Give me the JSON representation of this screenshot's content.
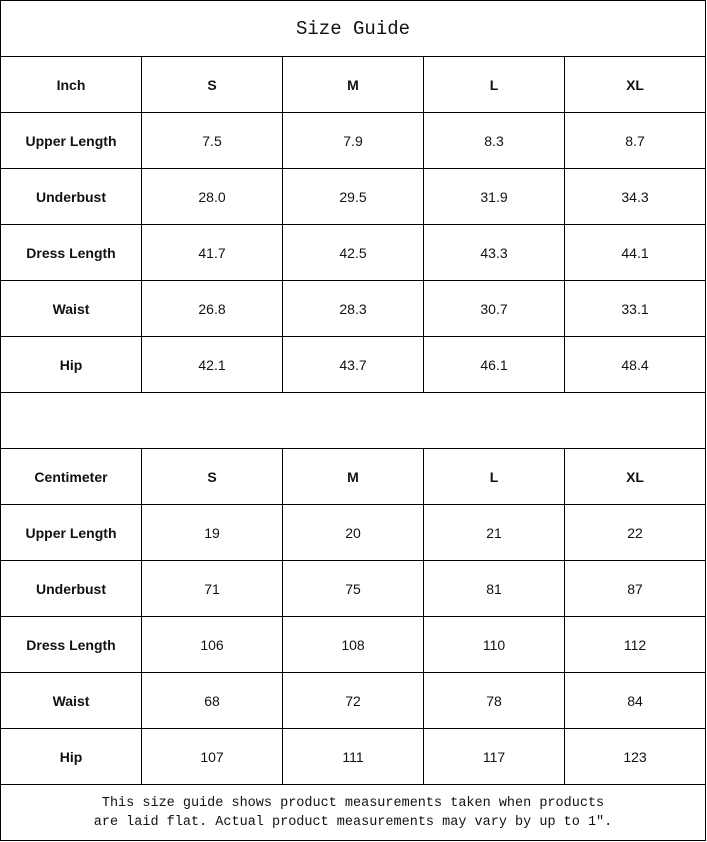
{
  "title": "Size Guide",
  "sizes": [
    "S",
    "M",
    "L",
    "XL"
  ],
  "inch": {
    "unit_label": "Inch",
    "rows": [
      {
        "label": "Upper Length",
        "values": [
          "7.5",
          "7.9",
          "8.3",
          "8.7"
        ]
      },
      {
        "label": "Underbust",
        "values": [
          "28.0",
          "29.5",
          "31.9",
          "34.3"
        ]
      },
      {
        "label": "Dress Length",
        "values": [
          "41.7",
          "42.5",
          "43.3",
          "44.1"
        ]
      },
      {
        "label": "Waist",
        "values": [
          "26.8",
          "28.3",
          "30.7",
          "33.1"
        ]
      },
      {
        "label": "Hip",
        "values": [
          "42.1",
          "43.7",
          "46.1",
          "48.4"
        ]
      }
    ]
  },
  "centimeter": {
    "unit_label": "Centimeter",
    "rows": [
      {
        "label": "Upper Length",
        "values": [
          "19",
          "20",
          "21",
          "22"
        ]
      },
      {
        "label": "Underbust",
        "values": [
          "71",
          "75",
          "81",
          "87"
        ]
      },
      {
        "label": "Dress Length",
        "values": [
          "106",
          "108",
          "110",
          "112"
        ]
      },
      {
        "label": "Waist",
        "values": [
          "68",
          "72",
          "78",
          "84"
        ]
      },
      {
        "label": "Hip",
        "values": [
          "107",
          "111",
          "117",
          "123"
        ]
      }
    ]
  },
  "note": {
    "line1": "This size guide shows product measurements taken when products",
    "line2": "are laid flat. Actual product measurements may vary by up to 1″."
  }
}
